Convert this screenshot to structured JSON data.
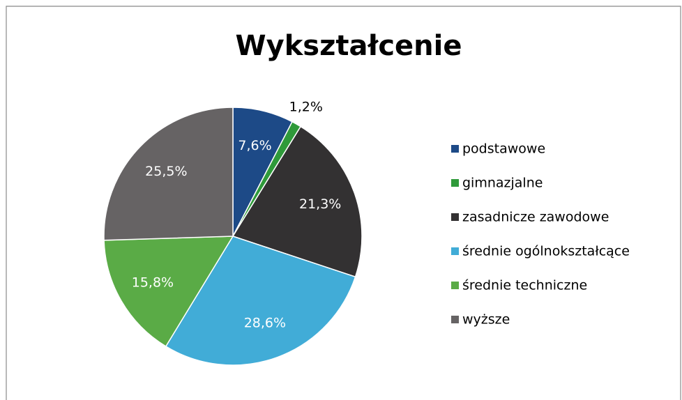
{
  "chart_data": {
    "type": "pie",
    "title": "Wykształcenie",
    "categories": [
      "podstawowe",
      "gimnazjalne",
      "zasadnicze zawodowe",
      "średnie ogólnokształcące",
      "średnie techniczne",
      "wyższe"
    ],
    "values": [
      7.6,
      1.2,
      21.3,
      28.6,
      15.8,
      25.5
    ],
    "value_labels": [
      "7,6%",
      "1,2%",
      "21,3%",
      "28,6%",
      "15,8%",
      "25,5%"
    ],
    "colors": [
      "#1d4a87",
      "#2f9a3a",
      "#333132",
      "#41acd7",
      "#5aab46",
      "#666364"
    ],
    "legend": "right"
  }
}
